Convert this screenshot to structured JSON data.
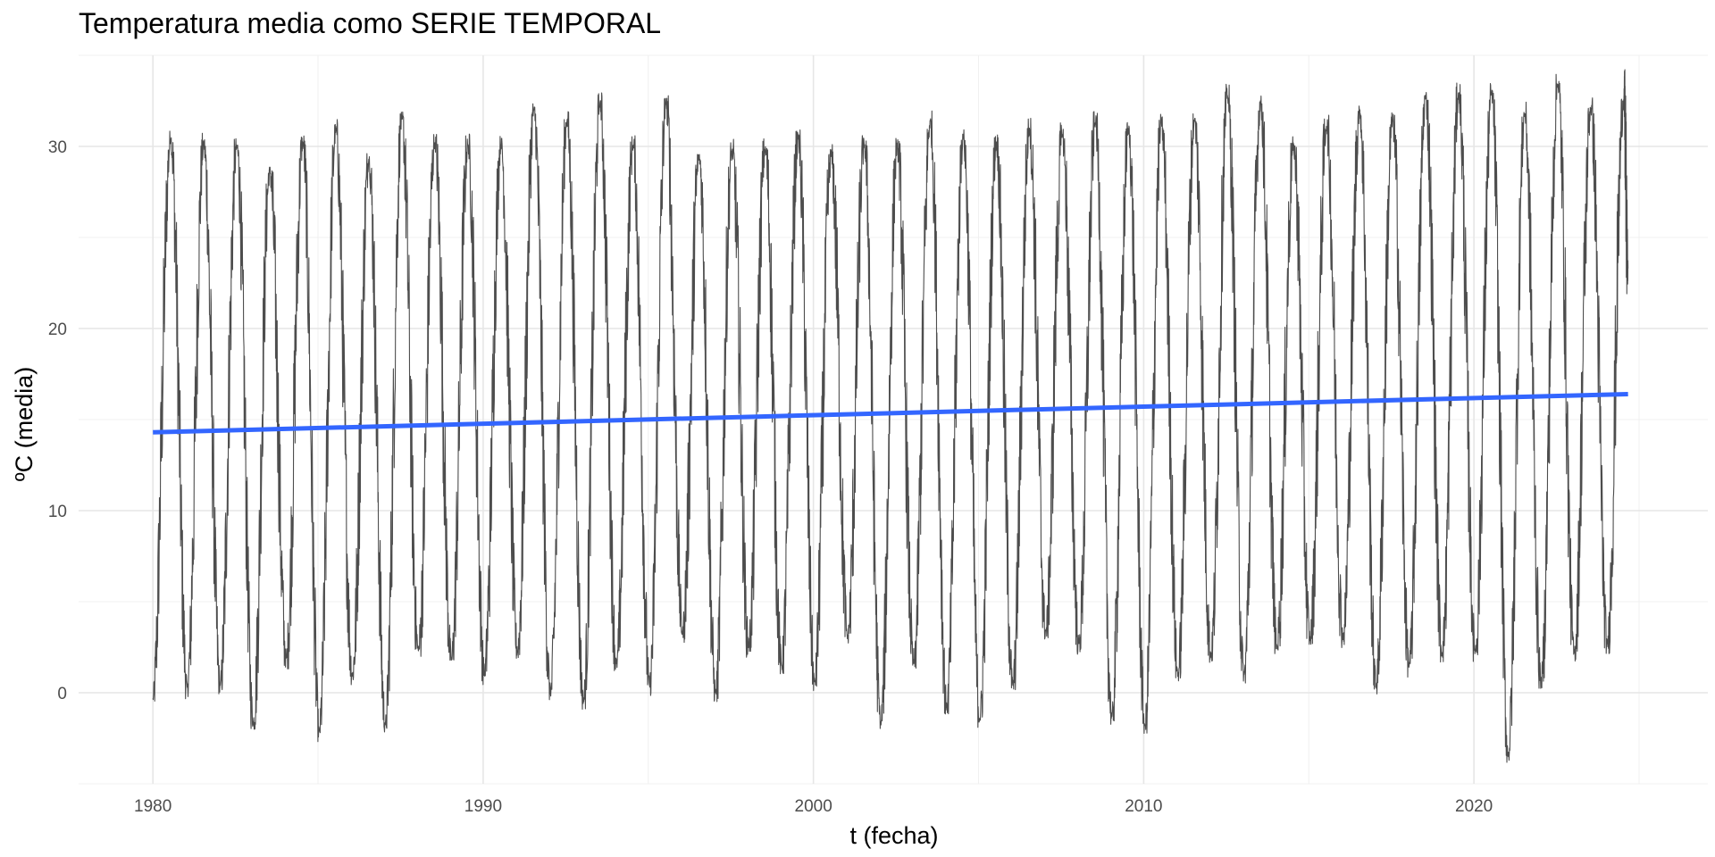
{
  "chart_data": {
    "type": "line",
    "title": "Temperatura media como SERIE TEMPORAL",
    "xlabel": "t (fecha)",
    "ylabel": "ºC (media)",
    "xlim": [
      "1977-10-01",
      "2027-02-01"
    ],
    "ylim": [
      -5,
      35
    ],
    "x_ticks": [
      "1980",
      "1990",
      "2000",
      "2010",
      "2020"
    ],
    "y_ticks": [
      "0",
      "10",
      "20",
      "30"
    ],
    "grid": true,
    "legend": "none",
    "series": [
      {
        "color": "#4d4d4d",
        "note_style": "seasonal daily series",
        "x": [
          "1980-01-01",
          "1980-07-15",
          "1981-01-15",
          "1981-07-15",
          "1982-01-15",
          "1982-07-15",
          "1983-01-15",
          "1983-07-15",
          "1984-01-15",
          "1984-07-15",
          "1985-01-15",
          "1985-07-15",
          "1986-01-15",
          "1986-07-15",
          "1987-01-15",
          "1987-07-15",
          "1988-01-15",
          "1988-07-15",
          "1989-01-15",
          "1989-07-15",
          "1990-01-15",
          "1990-07-15",
          "1991-01-15",
          "1991-07-15",
          "1992-01-15",
          "1992-07-15",
          "1993-01-15",
          "1993-07-15",
          "1994-01-15",
          "1994-07-15",
          "1995-01-15",
          "1995-07-15",
          "1996-01-15",
          "1996-07-15",
          "1997-01-15",
          "1997-07-15",
          "1998-01-15",
          "1998-07-15",
          "1999-01-15",
          "1999-07-15",
          "2000-01-15",
          "2000-07-15",
          "2001-01-15",
          "2001-07-15",
          "2002-01-15",
          "2002-07-15",
          "2003-01-15",
          "2003-07-15",
          "2004-01-15",
          "2004-07-15",
          "2005-01-15",
          "2005-07-15",
          "2006-01-15",
          "2006-07-15",
          "2007-01-15",
          "2007-07-15",
          "2008-01-15",
          "2008-07-15",
          "2009-01-15",
          "2009-07-15",
          "2010-01-15",
          "2010-07-15",
          "2011-01-15",
          "2011-07-15",
          "2012-01-15",
          "2012-07-15",
          "2013-01-15",
          "2013-07-15",
          "2014-01-15",
          "2014-07-15",
          "2015-01-15",
          "2015-07-15",
          "2016-01-15",
          "2016-07-15",
          "2017-01-15",
          "2017-07-15",
          "2018-01-15",
          "2018-07-15",
          "2019-01-15",
          "2019-07-15",
          "2020-01-15",
          "2020-07-15",
          "2021-01-15",
          "2021-07-15",
          "2022-01-15",
          "2022-07-15",
          "2023-01-15",
          "2023-07-15",
          "2024-01-15",
          "2024-07-15",
          "2024-09-01"
        ],
        "y": [
          -0.3,
          30.4,
          0.3,
          30.1,
          0.4,
          30.0,
          -1.6,
          28.7,
          1.9,
          30.2,
          -2.1,
          30.9,
          1.0,
          29.3,
          -1.7,
          31.5,
          2.3,
          30.2,
          1.8,
          30.1,
          1.1,
          30.1,
          2.3,
          32.0,
          0.0,
          31.4,
          -0.4,
          32.4,
          1.6,
          30.0,
          0.4,
          32.3,
          3.4,
          29.4,
          0.0,
          29.7,
          2.6,
          29.8,
          1.5,
          30.4,
          0.6,
          29.5,
          3.1,
          30.1,
          -1.6,
          30.0,
          1.6,
          31.4,
          -0.8,
          30.6,
          -1.4,
          30.2,
          0.4,
          31.0,
          3.4,
          30.6,
          2.7,
          31.3,
          -1.3,
          30.9,
          -1.8,
          31.3,
          1.0,
          31.4,
          2.1,
          32.8,
          1.0,
          32.4,
          2.6,
          30.0,
          3.0,
          31.1,
          3.1,
          32.0,
          0.4,
          31.4,
          1.5,
          32.7,
          2.2,
          32.9,
          2.3,
          32.9,
          -3.4,
          31.8,
          0.6,
          33.4,
          2.2,
          32.1,
          2.7,
          32.6,
          23.3
        ]
      }
    ],
    "trend": {
      "color": "#3366ff",
      "x": [
        "1980-01-01",
        "2024-09-01"
      ],
      "y": [
        14.3,
        16.4
      ]
    }
  }
}
